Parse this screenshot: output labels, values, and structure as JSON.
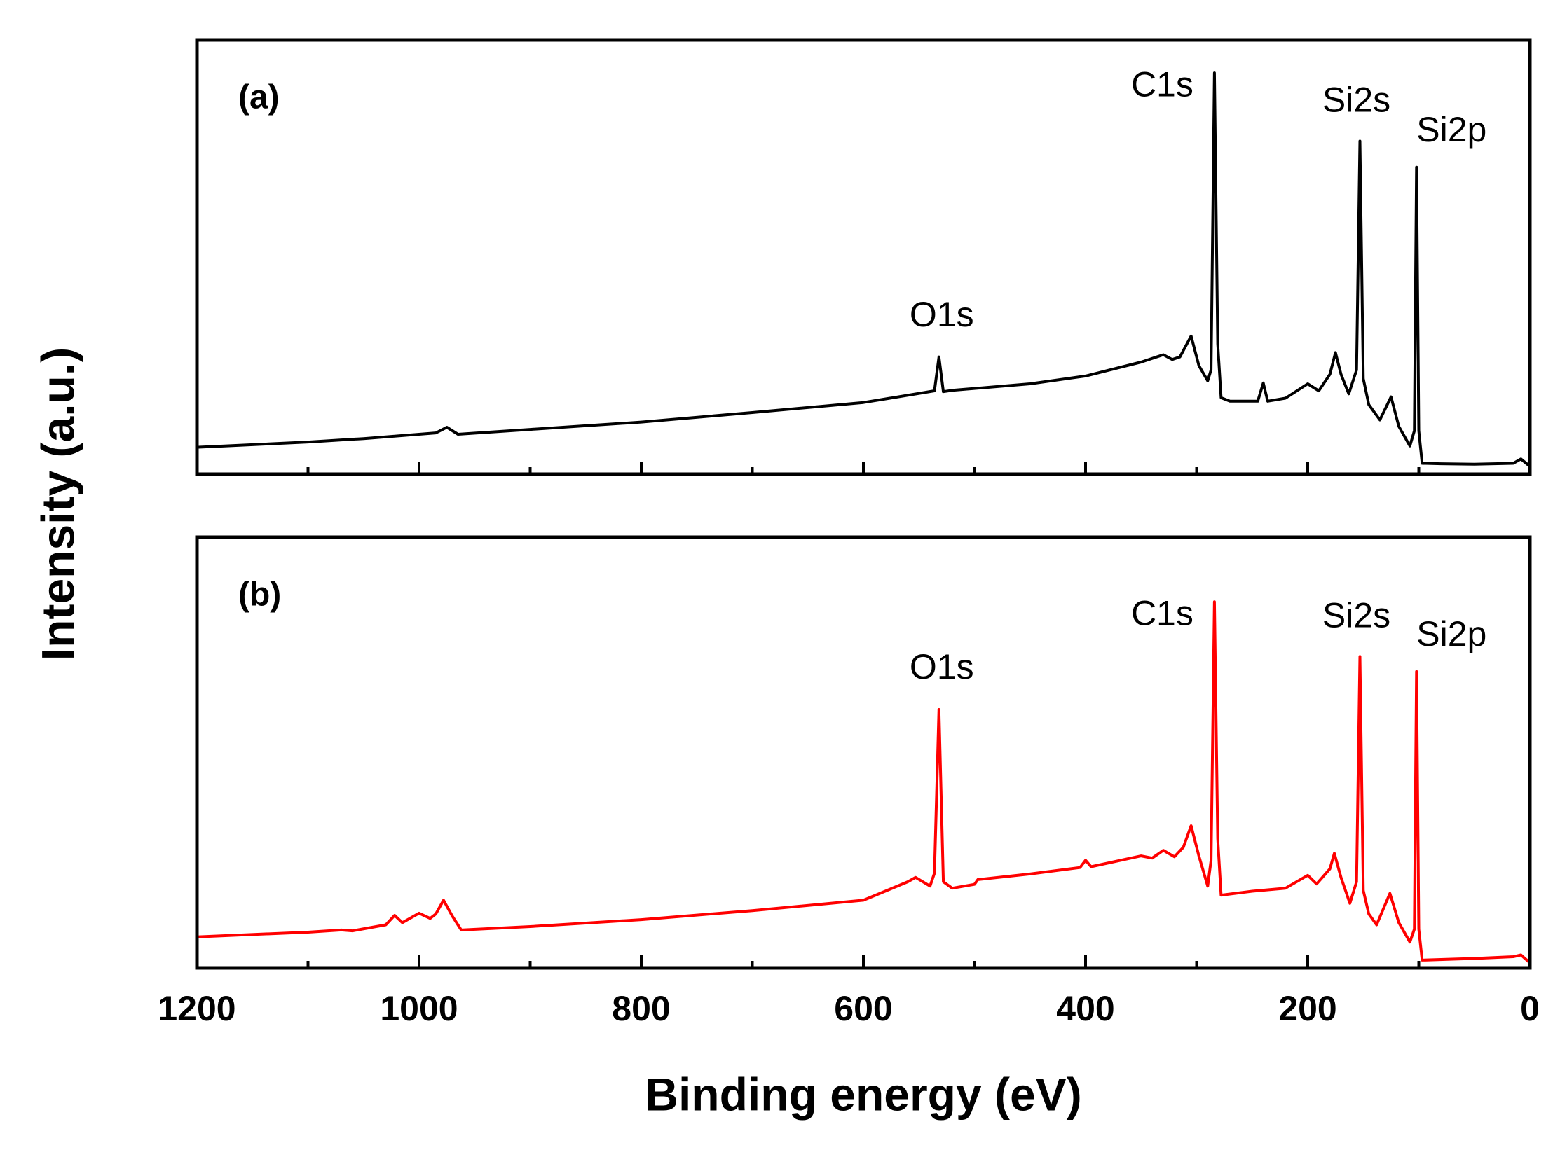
{
  "chart_data": [
    {
      "type": "line",
      "panel_label": "(a)",
      "ylabel": "Intensity (a.u.)",
      "color": "#000000",
      "xlim": [
        1200,
        0
      ],
      "ylim": [
        0,
        100
      ],
      "x": [
        1200,
        1100,
        1050,
        1000,
        985,
        975,
        965,
        900,
        800,
        700,
        600,
        545,
        536,
        532,
        528,
        520,
        450,
        400,
        350,
        330,
        322,
        315,
        305,
        298,
        290,
        287,
        284,
        281,
        278,
        270,
        245,
        240,
        236,
        220,
        200,
        190,
        180,
        175,
        170,
        163,
        156,
        153,
        150,
        145,
        135,
        125,
        118,
        108,
        104,
        102,
        100,
        97,
        80,
        50,
        15,
        8,
        0
      ],
      "values": [
        6.2,
        7.4,
        8.2,
        9.2,
        9.5,
        10.8,
        9.2,
        10.3,
        12,
        14.2,
        16.5,
        18.8,
        19.2,
        27,
        19,
        19.3,
        20.8,
        22.6,
        25.8,
        27.5,
        26.4,
        27,
        31.8,
        25,
        21.5,
        24,
        92.4,
        30,
        17.6,
        16.8,
        16.8,
        21,
        16.8,
        17.5,
        20.8,
        19.2,
        23,
        28,
        23,
        18.5,
        24,
        76.7,
        22,
        16,
        12.5,
        17.8,
        11,
        6.5,
        10,
        70.7,
        10,
        2.5,
        2.4,
        2.3,
        2.5,
        3.5,
        1.8
      ],
      "annotations": [
        {
          "text": "O1s",
          "x": 532
        },
        {
          "text": "C1s",
          "x": 284
        },
        {
          "text": "Si2s",
          "x": 153
        },
        {
          "text": "Si2p",
          "x": 102
        }
      ]
    },
    {
      "type": "line",
      "panel_label": "(b)",
      "xlabel": "Binding energy (eV)",
      "color": "#ff0000",
      "xlim": [
        1200,
        0
      ],
      "ylim": [
        0,
        100
      ],
      "xticks": [
        1200,
        1000,
        800,
        600,
        400,
        200,
        0
      ],
      "xminorticks": [
        1100,
        900,
        700,
        500,
        300,
        100
      ],
      "x": [
        1200,
        1100,
        1070,
        1060,
        1030,
        1022,
        1015,
        1000,
        990,
        985,
        978,
        970,
        962,
        900,
        800,
        700,
        600,
        560,
        553,
        540,
        536,
        532,
        528,
        520,
        500,
        497,
        450,
        405,
        400,
        395,
        350,
        340,
        330,
        320,
        312,
        305,
        298,
        290,
        287,
        284,
        281,
        278,
        250,
        220,
        200,
        192,
        180,
        176,
        170,
        162,
        156,
        153,
        150,
        145,
        138,
        126,
        118,
        108,
        104,
        102,
        100,
        97,
        50,
        15,
        8,
        0
      ],
      "values": [
        7.2,
        8.3,
        8.8,
        8.6,
        10,
        12.2,
        10.5,
        12.7,
        11.5,
        12.5,
        15.7,
        12,
        8.8,
        9.6,
        11.2,
        13.3,
        15.7,
        20,
        21,
        19,
        22,
        60,
        20,
        18.5,
        19.4,
        20.5,
        21.8,
        23.3,
        25,
        23.5,
        26,
        25.5,
        27.3,
        25.8,
        28,
        33,
        26,
        19,
        25,
        85,
        30,
        16.9,
        17.8,
        18.5,
        21.5,
        19.5,
        23,
        26.6,
        21,
        15,
        20,
        72.3,
        18,
        12.5,
        10,
        17.3,
        10.5,
        6,
        9,
        68.8,
        9,
        1.8,
        2.2,
        2.6,
        3,
        1.2
      ],
      "annotations": [
        {
          "text": "O1s",
          "x": 532
        },
        {
          "text": "C1s",
          "x": 284
        },
        {
          "text": "Si2s",
          "x": 153
        },
        {
          "text": "Si2p",
          "x": 102
        }
      ]
    }
  ]
}
